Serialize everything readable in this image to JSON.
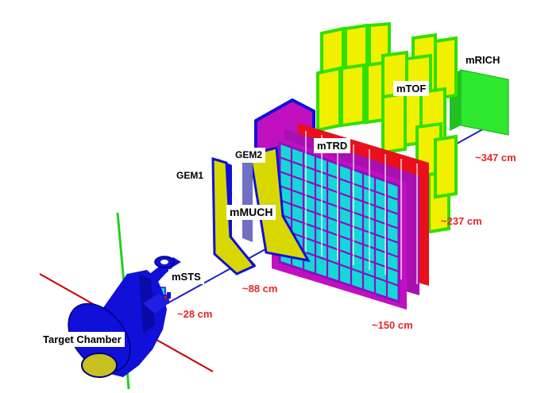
{
  "labels": {
    "target_chamber": "Target Chamber",
    "msts": "mSTS",
    "gem1": "GEM1",
    "gem2": "GEM2",
    "mmuch": "mMUCH",
    "mtrd": "mTRD",
    "mtof": "mTOF",
    "mrich": "mRICH"
  },
  "distances": {
    "msts": "~28 cm",
    "mmuch": "~88 cm",
    "mtrd": "~150 cm",
    "mtof": "~237 cm",
    "mrich": "~347 cm"
  },
  "colors": {
    "chamber_blue": "#1010d8",
    "gem_yellow": "#d8d800",
    "trd_cyan": "#14d8d8",
    "trd_magenta": "#c010c0",
    "trd_red": "#e8101c",
    "tof_yellow": "#f0f000",
    "tof_green": "#30e000",
    "rich_green": "#2ee82e",
    "distance_red": "#e8262b"
  }
}
